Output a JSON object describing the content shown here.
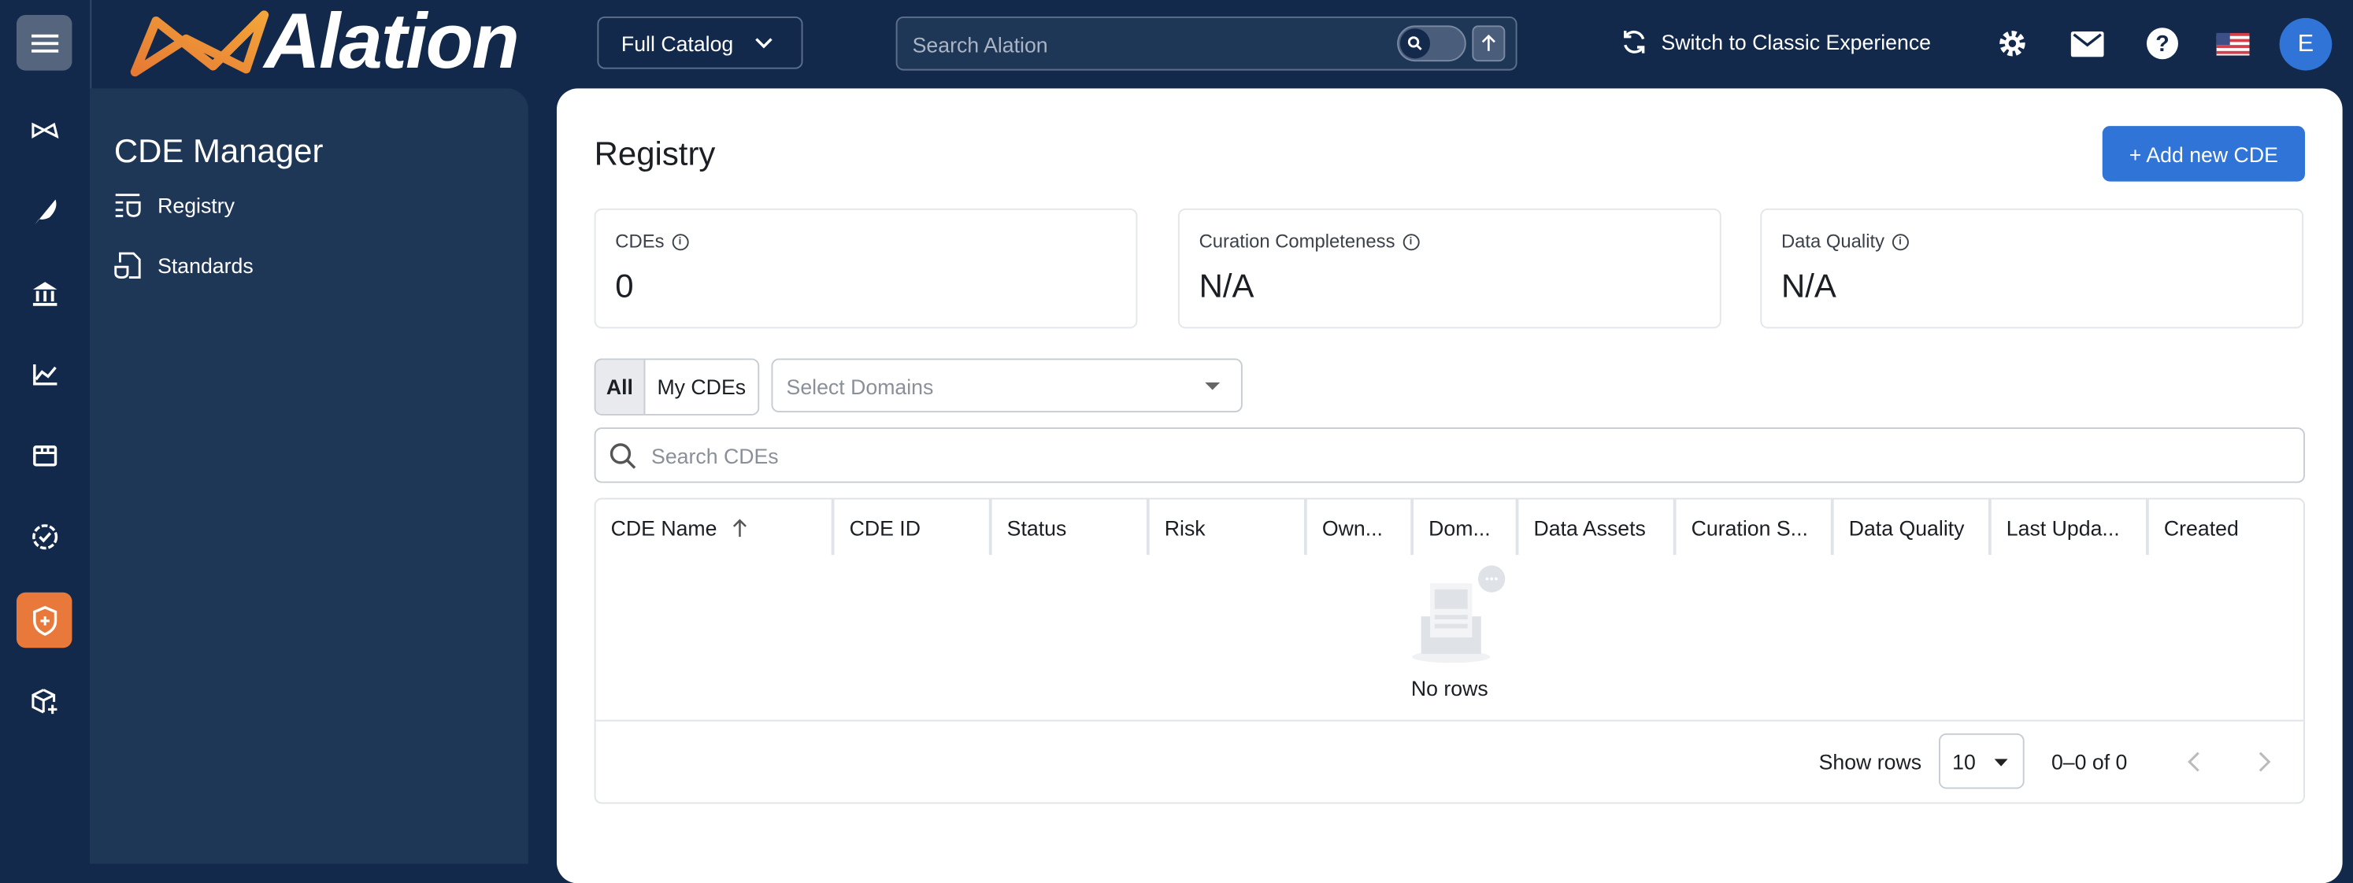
{
  "app": {
    "logo_text": "Alation",
    "catalog_label": "Full Catalog",
    "search_placeholder": "Search Alation",
    "classic_label": "Switch to Classic Experience",
    "avatar_initial": "E",
    "accent": "#2f74d6",
    "active_nav": "#e8793a"
  },
  "rail": {
    "items": [
      "home-icon",
      "compose-icon",
      "catalog-icon",
      "analytics-icon",
      "marketplace-icon",
      "governance-icon",
      "cde-manager-icon",
      "data-products-icon"
    ],
    "active": "cde-manager-icon"
  },
  "sidebar": {
    "title": "CDE Manager",
    "items": [
      {
        "label": "Registry"
      },
      {
        "label": "Standards"
      }
    ]
  },
  "main": {
    "title": "Registry",
    "add_label": "+ Add new CDE",
    "cards": [
      {
        "label": "CDEs",
        "value": "0"
      },
      {
        "label": "Curation Completeness",
        "value": "N/A"
      },
      {
        "label": "Data Quality",
        "value": "N/A"
      }
    ],
    "filter": {
      "all": "All",
      "mine": "My CDEs",
      "selected": "All",
      "domains_placeholder": "Select Domains"
    },
    "search_placeholder": "Search CDEs",
    "table": {
      "columns": [
        "CDE Name",
        "CDE ID",
        "Status",
        "Risk",
        "Own...",
        "Dom...",
        "Data Assets",
        "Curation S...",
        "Data Quality",
        "Last Upda...",
        "Created"
      ],
      "sort": "CDE Name ascending",
      "empty": "No rows",
      "footer": {
        "show_rows_label": "Show rows",
        "rows_value": "10",
        "range": "0–0 of 0"
      }
    }
  }
}
